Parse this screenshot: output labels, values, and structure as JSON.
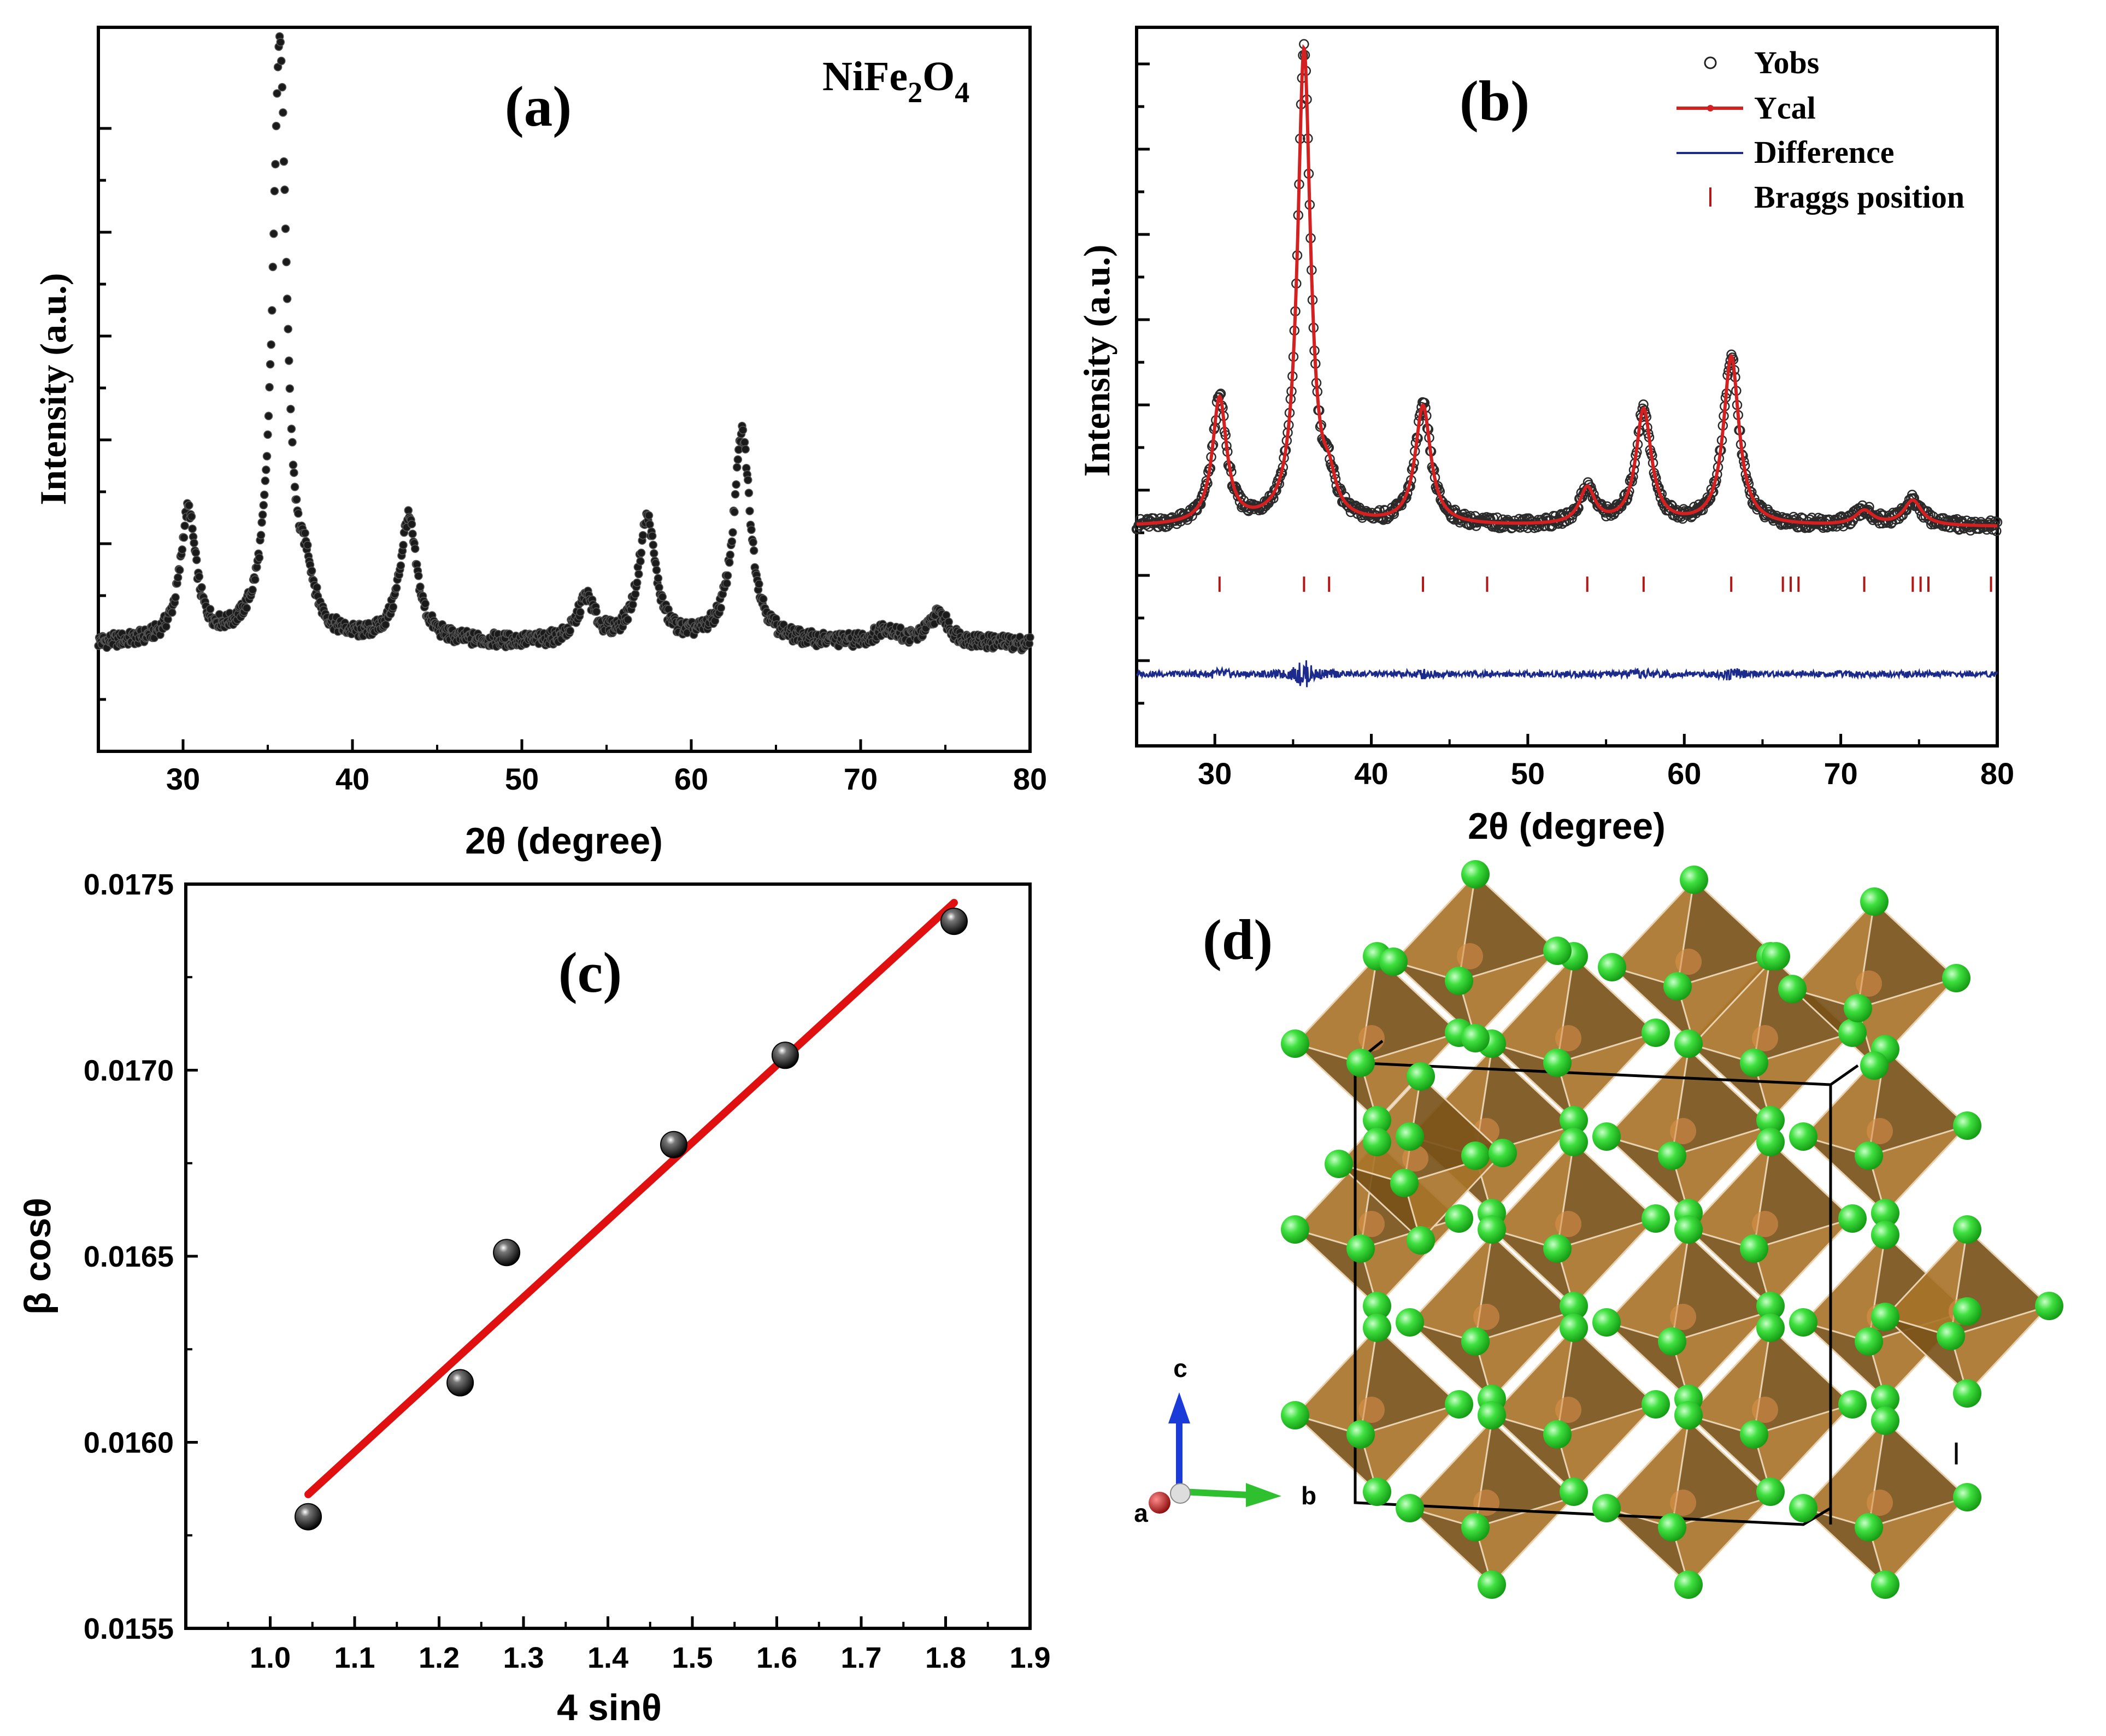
{
  "colors": {
    "axis": "#000000",
    "obs_marker": "#1a1a1a",
    "ycal": "#d42020",
    "difference": "#1c2a8c",
    "bragg": "#b01818",
    "fit_line": "#e01010",
    "octahedron": "#a8742a",
    "octahedron_dark": "#7a521a",
    "oxygen": "#2fd62f",
    "axis_c": "#1a3bd8",
    "axis_b": "#2fc02f",
    "axis_a": "#c01818"
  },
  "chart_data": [
    {
      "panel": "a",
      "type": "scatter",
      "panel_label": "(a)",
      "compound": {
        "base": "NiFe",
        "sub1": "2",
        "mid": "O",
        "sub2": "4"
      },
      "xlabel": "2θ (degree)",
      "ylabel": "Intensity (a.u.)",
      "xlim": [
        25,
        80
      ],
      "ylim": [
        0,
        1
      ],
      "xticks": [
        "30",
        "40",
        "50",
        "60",
        "70",
        "80"
      ],
      "background": 0.148,
      "peaks": [
        {
          "x": 30.3,
          "height": 0.18,
          "width": 0.55
        },
        {
          "x": 35.7,
          "height": 0.83,
          "width": 0.5
        },
        {
          "x": 37.3,
          "height": 0.06,
          "width": 0.5
        },
        {
          "x": 43.3,
          "height": 0.17,
          "width": 0.6
        },
        {
          "x": 53.8,
          "height": 0.06,
          "width": 0.6
        },
        {
          "x": 57.4,
          "height": 0.17,
          "width": 0.6
        },
        {
          "x": 63.0,
          "height": 0.29,
          "width": 0.6
        },
        {
          "x": 71.5,
          "height": 0.02,
          "width": 0.7
        },
        {
          "x": 74.6,
          "height": 0.04,
          "width": 0.7
        }
      ]
    },
    {
      "panel": "b",
      "type": "line",
      "panel_label": "(b)",
      "xlabel": "2θ (degree)",
      "ylabel": "Intensity (a.u.)",
      "xlim": [
        25,
        80
      ],
      "ylim": [
        0,
        1
      ],
      "xticks": [
        "30",
        "40",
        "50",
        "60",
        "70",
        "80"
      ],
      "background": 0.305,
      "peaks": [
        {
          "x": 30.3,
          "height": 0.175,
          "width": 0.55
        },
        {
          "x": 35.7,
          "height": 0.66,
          "width": 0.5
        },
        {
          "x": 37.3,
          "height": 0.04,
          "width": 0.5
        },
        {
          "x": 43.3,
          "height": 0.165,
          "width": 0.6
        },
        {
          "x": 53.8,
          "height": 0.05,
          "width": 0.6
        },
        {
          "x": 57.4,
          "height": 0.16,
          "width": 0.6
        },
        {
          "x": 63.0,
          "height": 0.235,
          "width": 0.6
        },
        {
          "x": 71.5,
          "height": 0.02,
          "width": 0.7
        },
        {
          "x": 74.6,
          "height": 0.035,
          "width": 0.7
        }
      ],
      "difference_level": 0.1,
      "bragg_level": 0.225,
      "bragg_positions": [
        30.3,
        35.7,
        37.3,
        43.3,
        47.4,
        53.8,
        57.4,
        63.0,
        66.3,
        66.8,
        67.3,
        71.5,
        74.6,
        75.1,
        75.6,
        79.6
      ],
      "legend": [
        {
          "label": "Yobs",
          "kind": "circle"
        },
        {
          "label": "Ycal",
          "kind": "red-line"
        },
        {
          "label": "Difference",
          "kind": "blue-line"
        },
        {
          "label": "Braggs position",
          "kind": "tick"
        }
      ]
    },
    {
      "panel": "c",
      "type": "scatter",
      "panel_label": "(c)",
      "xlabel": "4 sinθ",
      "ylabel": "β cosθ",
      "xlim": [
        0.9,
        1.9
      ],
      "ylim": [
        0.0155,
        0.0175
      ],
      "xticks": [
        "1.0",
        "1.1",
        "1.2",
        "1.3",
        "1.4",
        "1.5",
        "1.6",
        "1.7",
        "1.8",
        "1.9"
      ],
      "yticks": [
        "0.0155",
        "0.0160",
        "0.0165",
        "0.0170",
        "0.0175"
      ],
      "points": [
        {
          "x": 1.045,
          "y": 0.0158
        },
        {
          "x": 1.225,
          "y": 0.01616
        },
        {
          "x": 1.28,
          "y": 0.01651
        },
        {
          "x": 1.478,
          "y": 0.0168
        },
        {
          "x": 1.61,
          "y": 0.01704
        },
        {
          "x": 1.81,
          "y": 0.0174
        }
      ],
      "fit": {
        "x": [
          1.045,
          1.81
        ],
        "y": [
          0.01586,
          0.01745
        ]
      }
    }
  ],
  "structure_panel": {
    "panel_label": "(d)",
    "axis_labels": {
      "a": "a",
      "b": "b",
      "c": "c"
    }
  }
}
